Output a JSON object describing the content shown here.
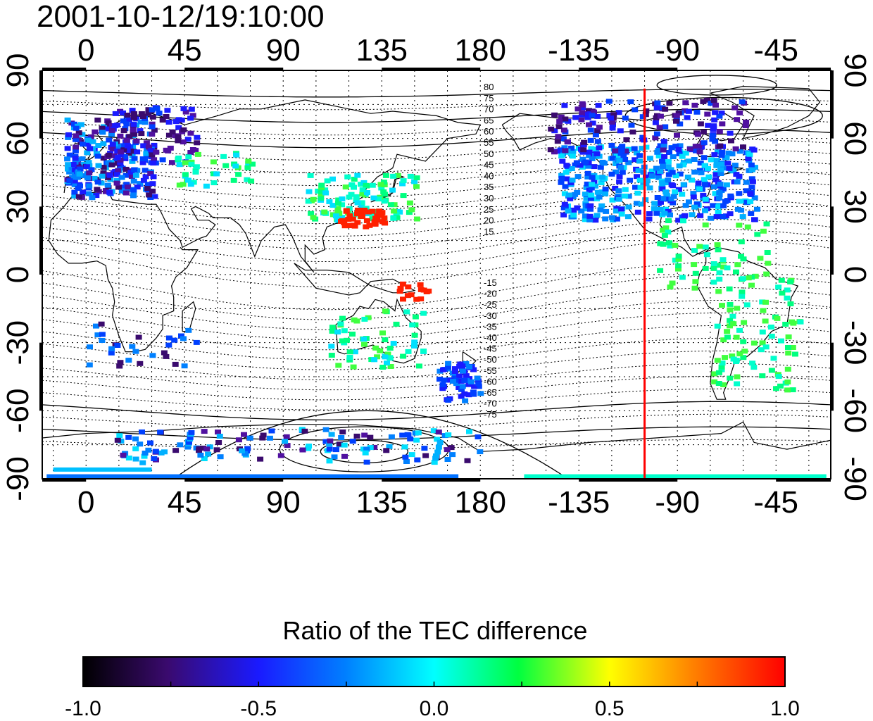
{
  "title": "2001-10-12/19:10:00",
  "colors": {
    "terminator": "#ff0000",
    "coast": "#000000",
    "grid": "#000000"
  },
  "map": {
    "lon_ticks_top": [
      "0",
      "45",
      "90",
      "135",
      "180",
      "-135",
      "-90",
      "-45"
    ],
    "lon_ticks_bottom": [
      "0",
      "45",
      "90",
      "135",
      "180",
      "-135",
      "-90",
      "-45"
    ],
    "lat_ticks_left": [
      "90",
      "60",
      "30",
      "0",
      "-30",
      "-60",
      "-90"
    ],
    "lat_ticks_right": [
      "90",
      "60",
      "30",
      "0",
      "-30",
      "-60",
      "-90"
    ],
    "lon_tick_values": [
      0,
      45,
      90,
      135,
      180,
      225,
      270,
      315
    ],
    "lat_tick_values": [
      90,
      60,
      30,
      0,
      -30,
      -60,
      -90
    ],
    "lon_range": [
      -20,
      340
    ],
    "lat_range": [
      -90,
      90
    ],
    "terminator_lon": 255,
    "contour_labels_north": [
      "80",
      "75",
      "70",
      "65",
      "60",
      "55",
      "50",
      "45",
      "40",
      "35",
      "30",
      "25",
      "20",
      "15"
    ],
    "contour_labels_south": [
      "-15",
      "-20",
      "-25",
      "-30",
      "-35",
      "-40",
      "-45",
      "-50",
      "-55",
      "-60",
      "-65",
      "-70",
      "-75"
    ]
  },
  "colorbar": {
    "title": "Ratio of the TEC difference",
    "tick_labels": [
      "-1.0",
      "-0.5",
      "0.0",
      "0.5",
      "1.0"
    ],
    "range": [
      -1.0,
      1.0
    ]
  }
}
